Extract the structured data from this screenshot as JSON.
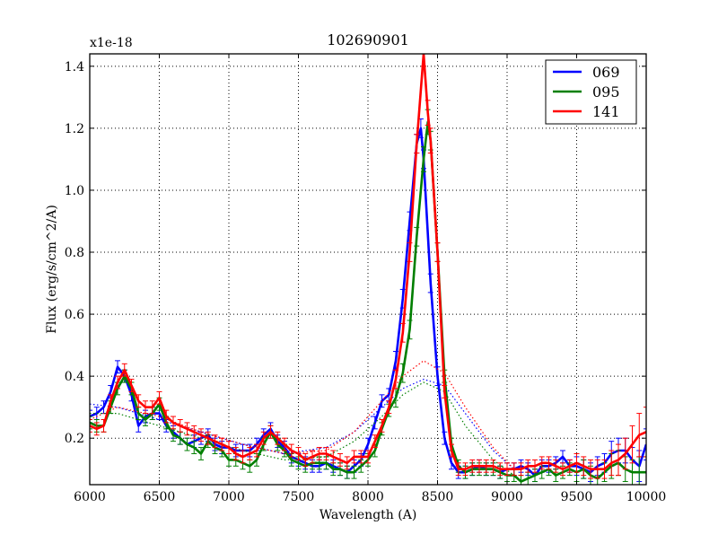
{
  "chart_data": {
    "type": "line",
    "title": "102690901",
    "xlabel": "Wavelength (A)",
    "ylabel": "Flux (erg/s/cm^2/A)",
    "y_offset_label": "x1e-18",
    "xlim": [
      6000,
      10000
    ],
    "ylim": [
      0.05,
      1.44
    ],
    "xticks": [
      6000,
      6500,
      7000,
      7500,
      8000,
      8500,
      9000,
      9500,
      10000
    ],
    "xtick_labels": [
      "6000",
      "6500",
      "7000",
      "7500",
      "8000",
      "8500",
      "9000",
      "9500",
      "10000"
    ],
    "yticks": [
      0.2,
      0.4,
      0.6,
      0.8,
      1.0,
      1.2,
      1.4
    ],
    "ytick_labels": [
      "0.2",
      "0.4",
      "0.6",
      "0.8",
      "1.0",
      "1.2",
      "1.4"
    ],
    "grid": true,
    "legend_position": "top-right",
    "series": [
      {
        "name": "069",
        "color": "#0000ff",
        "x": [
          6000,
          6050,
          6100,
          6150,
          6200,
          6250,
          6300,
          6350,
          6400,
          6450,
          6500,
          6550,
          6600,
          6650,
          6700,
          6750,
          6800,
          6850,
          6900,
          6950,
          7000,
          7050,
          7100,
          7150,
          7200,
          7250,
          7300,
          7350,
          7400,
          7450,
          7500,
          7550,
          7600,
          7650,
          7700,
          7750,
          7800,
          7850,
          7900,
          7950,
          8000,
          8050,
          8100,
          8150,
          8200,
          8250,
          8300,
          8350,
          8380,
          8400,
          8450,
          8500,
          8550,
          8600,
          8650,
          8700,
          8750,
          8800,
          8850,
          8900,
          8950,
          9000,
          9050,
          9100,
          9150,
          9200,
          9250,
          9300,
          9350,
          9400,
          9450,
          9500,
          9550,
          9600,
          9650,
          9700,
          9750,
          9800,
          9850,
          9900,
          9950,
          10000
        ],
        "y": [
          0.27,
          0.28,
          0.3,
          0.35,
          0.43,
          0.4,
          0.34,
          0.24,
          0.27,
          0.28,
          0.28,
          0.24,
          0.22,
          0.2,
          0.18,
          0.19,
          0.2,
          0.21,
          0.18,
          0.17,
          0.17,
          0.16,
          0.16,
          0.16,
          0.18,
          0.21,
          0.23,
          0.19,
          0.17,
          0.14,
          0.13,
          0.12,
          0.11,
          0.11,
          0.12,
          0.11,
          0.1,
          0.09,
          0.11,
          0.13,
          0.18,
          0.25,
          0.32,
          0.34,
          0.45,
          0.65,
          0.9,
          1.15,
          1.2,
          1.1,
          0.7,
          0.4,
          0.2,
          0.12,
          0.09,
          0.09,
          0.1,
          0.11,
          0.1,
          0.1,
          0.09,
          0.1,
          0.1,
          0.11,
          0.1,
          0.08,
          0.11,
          0.11,
          0.12,
          0.14,
          0.11,
          0.11,
          0.1,
          0.09,
          0.11,
          0.12,
          0.15,
          0.16,
          0.16,
          0.13,
          0.11,
          0.18
        ],
        "errors": [
          0.02,
          0.02,
          0.02,
          0.02,
          0.02,
          0.02,
          0.02,
          0.02,
          0.02,
          0.02,
          0.02,
          0.02,
          0.02,
          0.02,
          0.02,
          0.02,
          0.02,
          0.02,
          0.02,
          0.02,
          0.02,
          0.02,
          0.02,
          0.02,
          0.02,
          0.02,
          0.02,
          0.02,
          0.02,
          0.02,
          0.02,
          0.02,
          0.02,
          0.02,
          0.02,
          0.02,
          0.02,
          0.02,
          0.02,
          0.02,
          0.02,
          0.02,
          0.02,
          0.02,
          0.03,
          0.03,
          0.03,
          0.03,
          0.03,
          0.03,
          0.03,
          0.03,
          0.02,
          0.02,
          0.02,
          0.02,
          0.02,
          0.02,
          0.02,
          0.02,
          0.02,
          0.02,
          0.02,
          0.02,
          0.02,
          0.02,
          0.02,
          0.02,
          0.02,
          0.02,
          0.02,
          0.03,
          0.03,
          0.03,
          0.03,
          0.03,
          0.04,
          0.04,
          0.04,
          0.04,
          0.05,
          0.05
        ],
        "model": [
          [
            6000,
            0.31
          ],
          [
            6200,
            0.3
          ],
          [
            6500,
            0.26
          ],
          [
            6800,
            0.22
          ],
          [
            7100,
            0.18
          ],
          [
            7400,
            0.15
          ],
          [
            7700,
            0.17
          ],
          [
            7900,
            0.22
          ],
          [
            8100,
            0.3
          ],
          [
            8250,
            0.36
          ],
          [
            8400,
            0.39
          ],
          [
            8550,
            0.37
          ],
          [
            8700,
            0.28
          ],
          [
            8900,
            0.16
          ],
          [
            9050,
            0.1
          ]
        ]
      },
      {
        "name": "095",
        "color": "#007f00",
        "x": [
          6000,
          6050,
          6100,
          6150,
          6200,
          6250,
          6300,
          6350,
          6400,
          6450,
          6500,
          6550,
          6600,
          6650,
          6700,
          6750,
          6800,
          6850,
          6900,
          6950,
          7000,
          7050,
          7100,
          7150,
          7200,
          7250,
          7300,
          7350,
          7400,
          7450,
          7500,
          7550,
          7600,
          7650,
          7700,
          7750,
          7800,
          7850,
          7900,
          7950,
          8000,
          8050,
          8100,
          8150,
          8200,
          8250,
          8300,
          8350,
          8400,
          8430,
          8450,
          8500,
          8550,
          8600,
          8650,
          8700,
          8750,
          8800,
          8850,
          8900,
          8950,
          9000,
          9050,
          9100,
          9150,
          9200,
          9250,
          9300,
          9350,
          9400,
          9450,
          9500,
          9550,
          9600,
          9650,
          9700,
          9750,
          9800,
          9850,
          9900,
          9950,
          10000
        ],
        "y": [
          0.25,
          0.24,
          0.24,
          0.3,
          0.36,
          0.4,
          0.36,
          0.28,
          0.26,
          0.28,
          0.31,
          0.25,
          0.21,
          0.2,
          0.18,
          0.17,
          0.15,
          0.19,
          0.17,
          0.16,
          0.13,
          0.13,
          0.12,
          0.11,
          0.13,
          0.18,
          0.22,
          0.18,
          0.16,
          0.13,
          0.12,
          0.11,
          0.12,
          0.12,
          0.12,
          0.1,
          0.1,
          0.09,
          0.09,
          0.11,
          0.13,
          0.16,
          0.23,
          0.29,
          0.33,
          0.41,
          0.55,
          0.85,
          1.1,
          1.22,
          1.16,
          0.8,
          0.4,
          0.18,
          0.11,
          0.09,
          0.1,
          0.1,
          0.1,
          0.1,
          0.09,
          0.08,
          0.08,
          0.06,
          0.07,
          0.08,
          0.09,
          0.1,
          0.08,
          0.09,
          0.1,
          0.09,
          0.1,
          0.08,
          0.07,
          0.09,
          0.11,
          0.12,
          0.1,
          0.09,
          0.09,
          0.09
        ],
        "errors": [
          0.02,
          0.02,
          0.02,
          0.02,
          0.02,
          0.02,
          0.02,
          0.02,
          0.02,
          0.02,
          0.02,
          0.02,
          0.02,
          0.02,
          0.02,
          0.02,
          0.02,
          0.02,
          0.02,
          0.02,
          0.02,
          0.02,
          0.02,
          0.02,
          0.02,
          0.02,
          0.02,
          0.02,
          0.02,
          0.02,
          0.02,
          0.02,
          0.02,
          0.02,
          0.02,
          0.02,
          0.02,
          0.02,
          0.02,
          0.02,
          0.02,
          0.02,
          0.02,
          0.02,
          0.03,
          0.03,
          0.03,
          0.03,
          0.04,
          0.04,
          0.03,
          0.03,
          0.02,
          0.02,
          0.02,
          0.02,
          0.02,
          0.02,
          0.02,
          0.02,
          0.02,
          0.02,
          0.02,
          0.02,
          0.02,
          0.02,
          0.02,
          0.02,
          0.02,
          0.02,
          0.02,
          0.03,
          0.03,
          0.03,
          0.03,
          0.03,
          0.04,
          0.04,
          0.04,
          0.04,
          0.05,
          0.05
        ],
        "model": [
          [
            6000,
            0.28
          ],
          [
            6200,
            0.28
          ],
          [
            6500,
            0.24
          ],
          [
            6800,
            0.2
          ],
          [
            7100,
            0.16
          ],
          [
            7400,
            0.13
          ],
          [
            7700,
            0.14
          ],
          [
            7900,
            0.19
          ],
          [
            8100,
            0.27
          ],
          [
            8250,
            0.34
          ],
          [
            8400,
            0.38
          ],
          [
            8550,
            0.35
          ],
          [
            8700,
            0.24
          ],
          [
            8900,
            0.13
          ],
          [
            9050,
            0.08
          ]
        ]
      },
      {
        "name": "141",
        "color": "#ff0000",
        "x": [
          6000,
          6050,
          6100,
          6150,
          6200,
          6250,
          6300,
          6350,
          6400,
          6450,
          6500,
          6550,
          6600,
          6650,
          6700,
          6750,
          6800,
          6850,
          6900,
          6950,
          7000,
          7050,
          7100,
          7150,
          7200,
          7250,
          7300,
          7350,
          7400,
          7450,
          7500,
          7550,
          7600,
          7650,
          7700,
          7750,
          7800,
          7850,
          7900,
          7950,
          8000,
          8050,
          8100,
          8150,
          8200,
          8250,
          8300,
          8350,
          8400,
          8430,
          8450,
          8500,
          8550,
          8600,
          8650,
          8700,
          8750,
          8800,
          8850,
          8900,
          8950,
          9000,
          9050,
          9100,
          9150,
          9200,
          9250,
          9300,
          9350,
          9400,
          9450,
          9500,
          9550,
          9600,
          9650,
          9700,
          9750,
          9800,
          9850,
          9900,
          9950,
          10000
        ],
        "y": [
          0.24,
          0.23,
          0.24,
          0.32,
          0.38,
          0.42,
          0.37,
          0.32,
          0.3,
          0.3,
          0.33,
          0.27,
          0.25,
          0.24,
          0.23,
          0.22,
          0.21,
          0.2,
          0.19,
          0.18,
          0.17,
          0.15,
          0.14,
          0.15,
          0.16,
          0.2,
          0.22,
          0.2,
          0.18,
          0.16,
          0.15,
          0.13,
          0.14,
          0.15,
          0.15,
          0.14,
          0.13,
          0.12,
          0.14,
          0.14,
          0.14,
          0.19,
          0.24,
          0.3,
          0.39,
          0.54,
          0.8,
          1.15,
          1.44,
          1.25,
          1.16,
          0.8,
          0.35,
          0.16,
          0.1,
          0.1,
          0.11,
          0.11,
          0.11,
          0.11,
          0.1,
          0.1,
          0.1,
          0.1,
          0.11,
          0.11,
          0.12,
          0.12,
          0.11,
          0.1,
          0.11,
          0.12,
          0.11,
          0.1,
          0.1,
          0.1,
          0.12,
          0.13,
          0.15,
          0.18,
          0.21,
          0.22
        ],
        "errors": [
          0.02,
          0.02,
          0.02,
          0.02,
          0.02,
          0.02,
          0.02,
          0.02,
          0.02,
          0.02,
          0.02,
          0.02,
          0.02,
          0.02,
          0.02,
          0.02,
          0.02,
          0.02,
          0.02,
          0.02,
          0.02,
          0.02,
          0.02,
          0.02,
          0.02,
          0.02,
          0.02,
          0.02,
          0.02,
          0.02,
          0.02,
          0.02,
          0.02,
          0.02,
          0.02,
          0.02,
          0.02,
          0.02,
          0.02,
          0.02,
          0.02,
          0.02,
          0.02,
          0.02,
          0.03,
          0.03,
          0.03,
          0.03,
          0.04,
          0.04,
          0.04,
          0.03,
          0.02,
          0.02,
          0.02,
          0.02,
          0.02,
          0.02,
          0.02,
          0.02,
          0.02,
          0.02,
          0.02,
          0.02,
          0.02,
          0.02,
          0.02,
          0.02,
          0.02,
          0.02,
          0.02,
          0.03,
          0.03,
          0.03,
          0.03,
          0.03,
          0.04,
          0.05,
          0.05,
          0.06,
          0.07,
          0.08
        ],
        "model": [
          [
            6000,
            0.26
          ],
          [
            6200,
            0.3
          ],
          [
            6500,
            0.27
          ],
          [
            6800,
            0.22
          ],
          [
            7100,
            0.18
          ],
          [
            7400,
            0.15
          ],
          [
            7700,
            0.16
          ],
          [
            7900,
            0.22
          ],
          [
            8100,
            0.32
          ],
          [
            8250,
            0.4
          ],
          [
            8400,
            0.45
          ],
          [
            8550,
            0.41
          ],
          [
            8700,
            0.3
          ],
          [
            8900,
            0.17
          ],
          [
            9050,
            0.1
          ]
        ]
      }
    ]
  }
}
